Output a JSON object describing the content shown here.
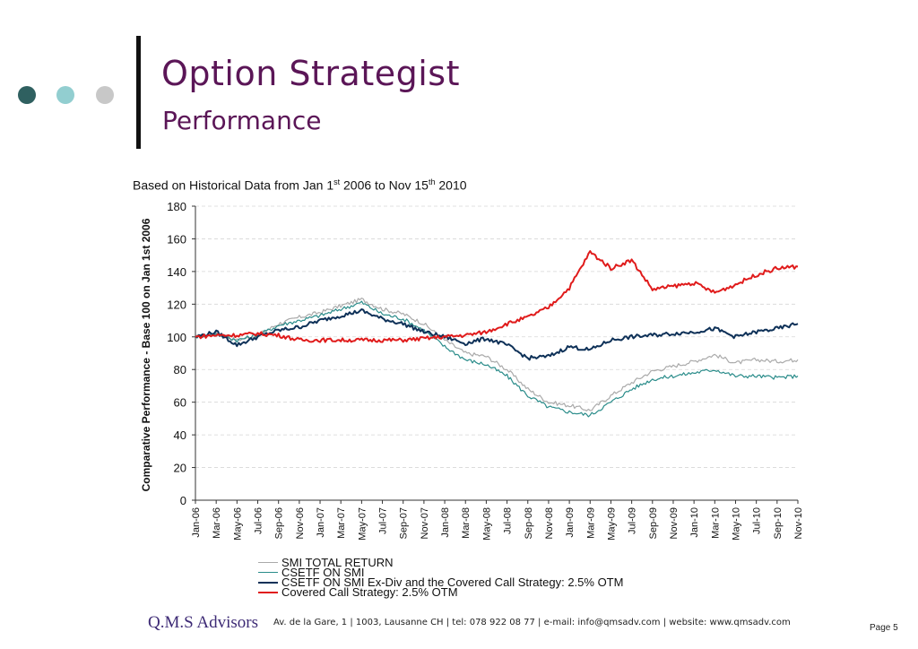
{
  "header": {
    "title": "Option Strategist",
    "subtitle": "Performance",
    "dot_colors": [
      "#2f6060",
      "#92ced0",
      "#c8c8c8"
    ]
  },
  "caption": {
    "prefix": "Based on Historical Data from Jan 1",
    "sup1": "st",
    "middle": " 2006 to Nov 15",
    "sup2": "th",
    "suffix": " 2010"
  },
  "chart_data": {
    "type": "line",
    "ylabel": "Comparative Performance - Base 100 on Jan 1st 2006",
    "ylim": [
      0,
      180
    ],
    "yticks": [
      0,
      20,
      40,
      60,
      80,
      100,
      120,
      140,
      160,
      180
    ],
    "grid": "horizontal dashed",
    "legend_position": "bottom",
    "x": [
      "Jan-06",
      "Mar-06",
      "May-06",
      "Jul-06",
      "Sep-06",
      "Nov-06",
      "Jan-07",
      "Mar-07",
      "May-07",
      "Jul-07",
      "Sep-07",
      "Nov-07",
      "Jan-08",
      "Mar-08",
      "May-08",
      "Jul-08",
      "Sep-08",
      "Nov-08",
      "Jan-09",
      "Mar-09",
      "May-09",
      "Jul-09",
      "Sep-09",
      "Nov-09",
      "Jan-10",
      "Mar-10",
      "May-10",
      "Jul-10",
      "Sep-10",
      "Nov-10"
    ],
    "series": [
      {
        "name": "SMI TOTAL RETURN",
        "color": "#aaaaaa",
        "width": 1.2,
        "values": [
          100,
          102,
          98,
          101,
          108,
          112,
          115,
          119,
          123,
          117,
          114,
          108,
          98,
          90,
          88,
          80,
          68,
          60,
          58,
          55,
          64,
          72,
          79,
          82,
          85,
          89,
          84,
          86,
          85,
          86
        ]
      },
      {
        "name": "CSETF ON SMI",
        "color": "#2a8c8a",
        "width": 1.2,
        "values": [
          100,
          102,
          98,
          101,
          107,
          110,
          113,
          117,
          121,
          114,
          111,
          104,
          94,
          86,
          83,
          76,
          64,
          57,
          54,
          52,
          60,
          68,
          74,
          76,
          78,
          80,
          76,
          76,
          75,
          76
        ]
      },
      {
        "name": "CSETF ON SMI Ex-Div and the Covered Call Strategy: 2.5% OTM",
        "color": "#0e3158",
        "width": 2,
        "values": [
          100,
          103,
          95,
          100,
          104,
          106,
          110,
          113,
          116,
          111,
          108,
          103,
          100,
          96,
          99,
          95,
          87,
          88,
          94,
          92,
          98,
          100,
          101,
          102,
          103,
          105,
          100,
          103,
          105,
          108
        ]
      },
      {
        "name": "Covered Call Strategy: 2.5% OTM",
        "color": "#e01b1b",
        "width": 2,
        "values": [
          100,
          101,
          101,
          102,
          101,
          98,
          98,
          98,
          98,
          98,
          98,
          99,
          100,
          101,
          103,
          108,
          112,
          118,
          130,
          152,
          142,
          147,
          129,
          131,
          133,
          127,
          132,
          138,
          142,
          143
        ]
      }
    ]
  },
  "footer": {
    "brand": "Q.M.S Advisors",
    "info": "Av. de la Gare, 1 | 1003, Lausanne CH | tel: 078 922 08 77 | e-mail: info@qmsadv.com | website: www.qmsadv.com",
    "page": "Page 5"
  }
}
